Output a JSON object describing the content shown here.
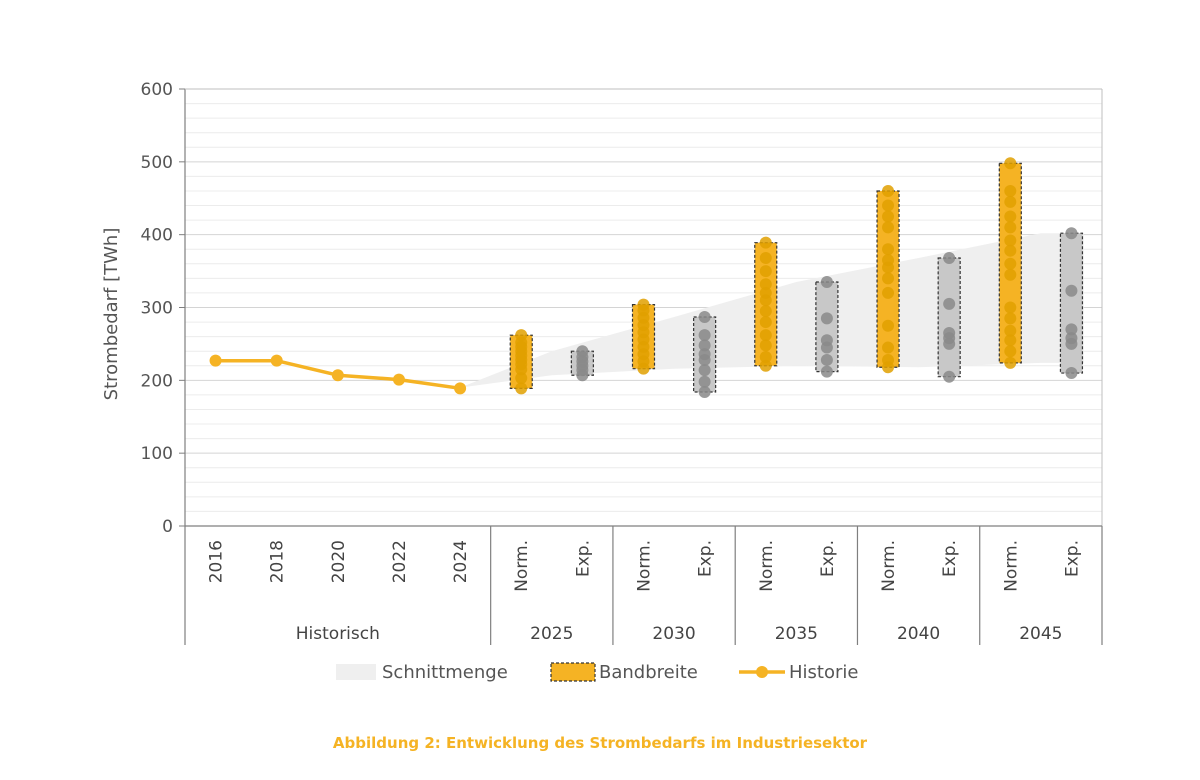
{
  "caption": "Abbildung 2: Entwicklung des Strombedarfs im Industriesektor",
  "chart_data": {
    "type": "line",
    "ylabel": "Strombedarf [TWh]",
    "ylim": [
      0,
      600
    ],
    "yticks": [
      0,
      100,
      200,
      300,
      400,
      500,
      600
    ],
    "grid": true,
    "categories": [
      {
        "label": "2016",
        "group": "Historisch"
      },
      {
        "label": "2018",
        "group": "Historisch"
      },
      {
        "label": "2020",
        "group": "Historisch"
      },
      {
        "label": "2022",
        "group": "Historisch"
      },
      {
        "label": "2024",
        "group": "Historisch"
      },
      {
        "label": "Norm.",
        "group": "2025"
      },
      {
        "label": "Exp.",
        "group": "2025"
      },
      {
        "label": "Norm.",
        "group": "2030"
      },
      {
        "label": "Exp.",
        "group": "2030"
      },
      {
        "label": "Norm.",
        "group": "2035"
      },
      {
        "label": "Exp.",
        "group": "2035"
      },
      {
        "label": "Norm.",
        "group": "2040"
      },
      {
        "label": "Exp.",
        "group": "2040"
      },
      {
        "label": "Norm.",
        "group": "2045"
      },
      {
        "label": "Exp.",
        "group": "2045"
      }
    ],
    "groups": [
      "Historisch",
      "2025",
      "2030",
      "2035",
      "2040",
      "2045"
    ],
    "history": {
      "name": "Historie",
      "color": "#F5B324",
      "values": [
        227,
        227,
        207,
        201,
        189
      ]
    },
    "intersection": {
      "name": "Schnittmenge",
      "color": "#EFEFEF",
      "upper": [
        {
          "cat": 4,
          "v": 190
        },
        {
          "cat": 5.5,
          "v": 240
        },
        {
          "cat": 7.5,
          "v": 287
        },
        {
          "cat": 9.5,
          "v": 335
        },
        {
          "cat": 11.5,
          "v": 368
        },
        {
          "cat": 13.5,
          "v": 402
        },
        {
          "cat": 14.2,
          "v": 402
        }
      ],
      "lower": [
        {
          "cat": 4,
          "v": 190
        },
        {
          "cat": 5.5,
          "v": 207
        },
        {
          "cat": 7.5,
          "v": 216
        },
        {
          "cat": 9.5,
          "v": 220
        },
        {
          "cat": 11.5,
          "v": 218
        },
        {
          "cat": 13.5,
          "v": 224
        },
        {
          "cat": 14.2,
          "v": 224
        }
      ]
    },
    "ranges": {
      "name": "Bandbreite",
      "items": [
        {
          "cat": 5,
          "scenario": "Norm.",
          "year": "2025",
          "min": 189,
          "max": 262,
          "color": "#F5B324",
          "points": [
            189,
            203,
            215,
            222,
            228,
            234,
            240,
            246,
            252,
            262
          ]
        },
        {
          "cat": 6,
          "scenario": "Exp.",
          "year": "2025",
          "min": 207,
          "max": 240,
          "color": "#C8C8C8",
          "points": [
            207,
            214,
            220,
            226,
            232,
            240
          ]
        },
        {
          "cat": 7,
          "scenario": "Norm.",
          "year": "2030",
          "min": 216,
          "max": 304,
          "color": "#F5B324",
          "points": [
            216,
            226,
            236,
            246,
            256,
            266,
            276,
            286,
            296,
            304
          ]
        },
        {
          "cat": 8,
          "scenario": "Exp.",
          "year": "2030",
          "min": 184,
          "max": 287,
          "color": "#C8C8C8",
          "points": [
            184,
            198,
            214,
            228,
            236,
            248,
            262,
            287
          ]
        },
        {
          "cat": 9,
          "scenario": "Norm.",
          "year": "2035",
          "min": 220,
          "max": 389,
          "color": "#F5B324",
          "points": [
            220,
            232,
            248,
            262,
            280,
            295,
            310,
            320,
            332,
            350,
            368,
            389
          ]
        },
        {
          "cat": 10,
          "scenario": "Exp.",
          "year": "2035",
          "min": 212,
          "max": 335,
          "color": "#C8C8C8",
          "points": [
            212,
            228,
            245,
            255,
            285,
            335
          ]
        },
        {
          "cat": 11,
          "scenario": "Norm.",
          "year": "2040",
          "min": 218,
          "max": 460,
          "color": "#F5B324",
          "points": [
            218,
            228,
            245,
            275,
            320,
            340,
            355,
            365,
            380,
            410,
            425,
            440,
            460
          ]
        },
        {
          "cat": 12,
          "scenario": "Exp.",
          "year": "2040",
          "min": 205,
          "max": 368,
          "color": "#C8C8C8",
          "points": [
            205,
            250,
            258,
            265,
            305,
            368
          ]
        },
        {
          "cat": 13,
          "scenario": "Norm.",
          "year": "2045",
          "min": 224,
          "max": 498,
          "color": "#F5B324",
          "points": [
            224,
            240,
            255,
            268,
            285,
            300,
            345,
            360,
            378,
            392,
            410,
            425,
            445,
            460,
            498
          ]
        },
        {
          "cat": 14,
          "scenario": "Exp.",
          "year": "2045",
          "min": 210,
          "max": 402,
          "color": "#C8C8C8",
          "points": [
            210,
            250,
            258,
            270,
            323,
            402
          ]
        }
      ]
    },
    "legend": {
      "placement": "bottom",
      "entries": [
        {
          "name": "Schnittmenge",
          "kind": "area",
          "color": "#EFEFEF"
        },
        {
          "name": "Bandbreite",
          "kind": "range",
          "color": "#F5B324"
        },
        {
          "name": "Historie",
          "kind": "line",
          "color": "#F5B324"
        }
      ]
    }
  }
}
